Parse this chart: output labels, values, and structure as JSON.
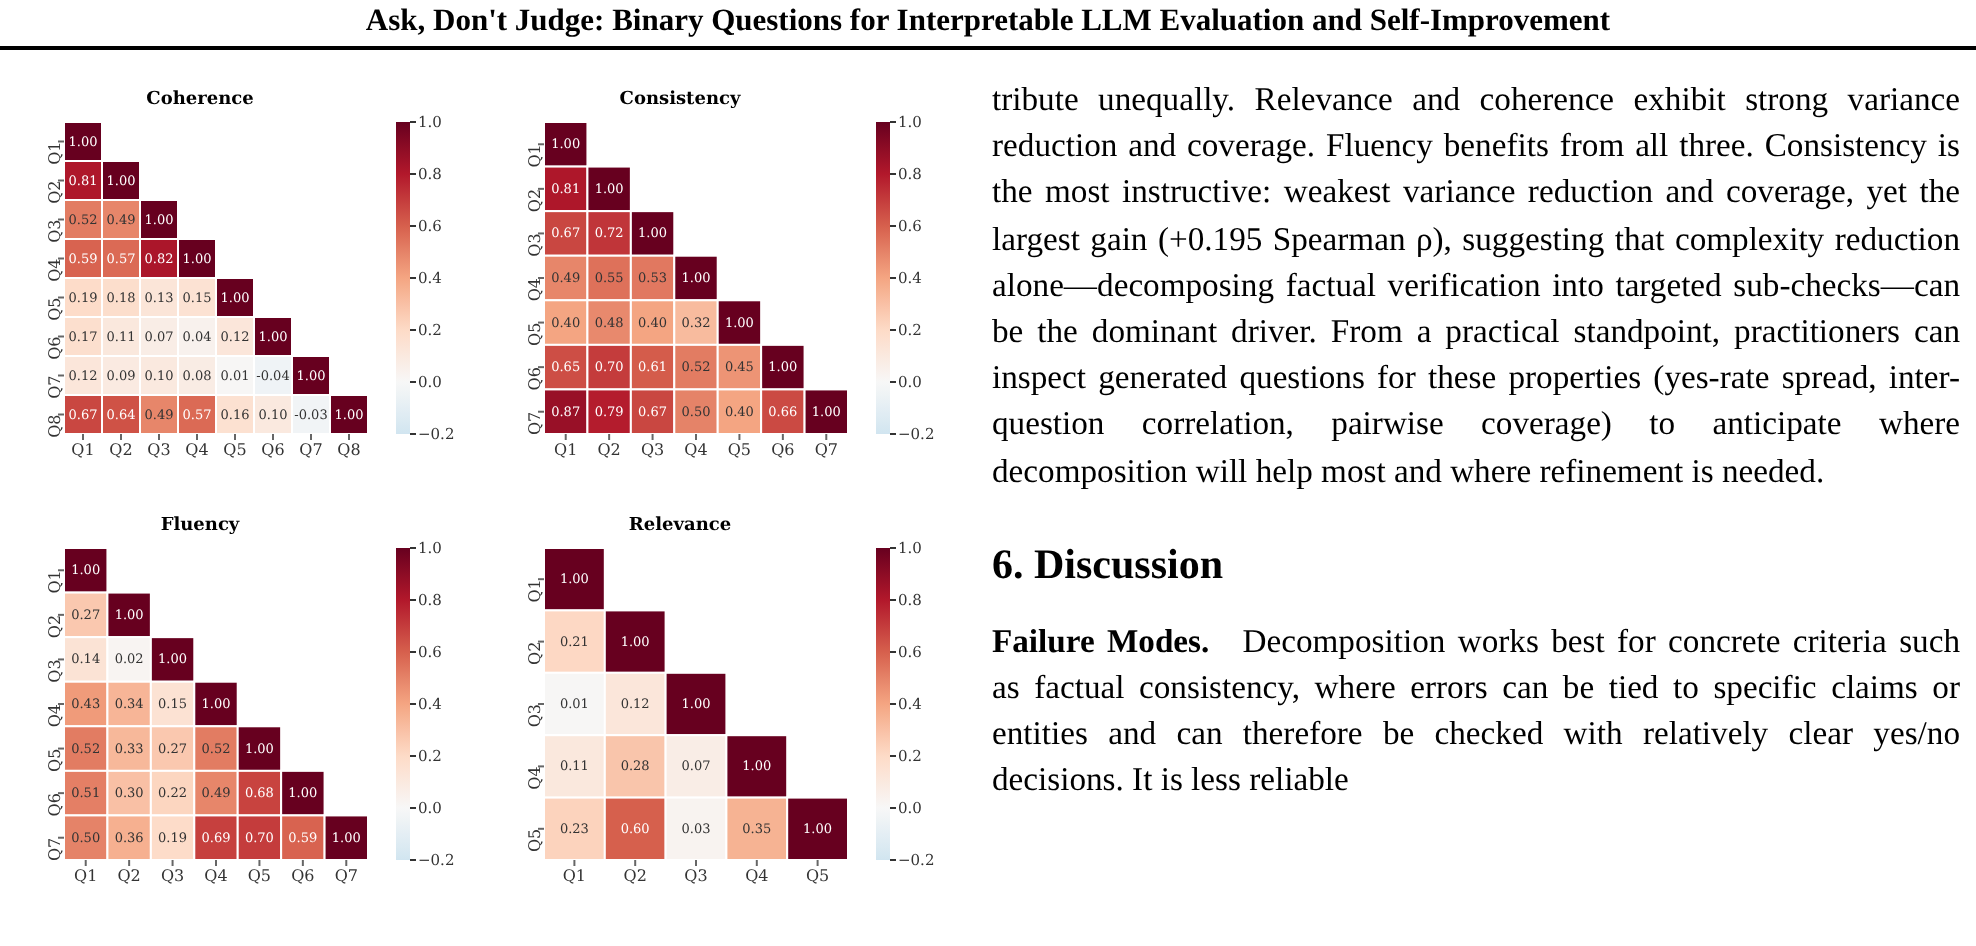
{
  "chart_data": [
    {
      "type": "heatmap",
      "title": "Coherence",
      "categories": [
        "Q1",
        "Q2",
        "Q3",
        "Q4",
        "Q5",
        "Q6",
        "Q7",
        "Q8"
      ],
      "y_categories": [
        "Q1",
        "Q2",
        "Q3",
        "Q4",
        "Q5",
        "Q6",
        "Q7",
        "Q8"
      ],
      "cells": [
        [
          1.0,
          null,
          null,
          null,
          null,
          null,
          null,
          null
        ],
        [
          0.81,
          1.0,
          null,
          null,
          null,
          null,
          null,
          null
        ],
        [
          0.52,
          0.49,
          1.0,
          null,
          null,
          null,
          null,
          null
        ],
        [
          0.59,
          0.57,
          0.82,
          1.0,
          null,
          null,
          null,
          null
        ],
        [
          0.19,
          0.18,
          0.13,
          0.15,
          1.0,
          null,
          null,
          null
        ],
        [
          0.17,
          0.11,
          0.07,
          0.04,
          0.12,
          1.0,
          null,
          null
        ],
        [
          0.12,
          0.09,
          0.1,
          0.08,
          0.01,
          -0.04,
          1.0,
          null
        ],
        [
          0.67,
          0.64,
          0.49,
          0.57,
          0.16,
          0.1,
          -0.03,
          1.0
        ]
      ],
      "cell_labels": [
        [
          "1.00",
          null,
          null,
          null,
          null,
          null,
          null,
          null
        ],
        [
          "0.81",
          "1.00",
          null,
          null,
          null,
          null,
          null,
          null
        ],
        [
          "0.52",
          "0.49",
          "1.00",
          null,
          null,
          null,
          null,
          null
        ],
        [
          "0.59",
          "0.57",
          "0.82",
          "1.00",
          null,
          null,
          null,
          null
        ],
        [
          "0.19",
          "0.18",
          "0.13",
          "0.15",
          "1.00",
          null,
          null,
          null
        ],
        [
          "0.17",
          "0.11",
          "0.07",
          "0.04",
          "0.12",
          "1.00",
          null,
          null
        ],
        [
          "0.12",
          "0.09",
          "0.10",
          "0.08",
          "0.01",
          "-0.04",
          "1.00",
          null
        ],
        [
          "0.67",
          "0.64",
          "0.49",
          "0.57",
          "0.16",
          "0.10",
          "-0.03",
          "1.00"
        ]
      ],
      "clim": [
        -0.2,
        1.0
      ],
      "cticks": [
        {
          "value": -0.2,
          "label": "−0.2"
        },
        {
          "value": 0,
          "label": "0.0"
        },
        {
          "value": 0.2,
          "label": "0.2"
        },
        {
          "value": 0.4,
          "label": "0.4"
        },
        {
          "value": 0.6,
          "label": "0.6"
        },
        {
          "value": 0.8,
          "label": "0.8"
        },
        {
          "value": 1.0,
          "label": "1.0"
        }
      ]
    },
    {
      "type": "heatmap",
      "title": "Consistency",
      "categories": [
        "Q1",
        "Q2",
        "Q3",
        "Q4",
        "Q5",
        "Q6",
        "Q7"
      ],
      "y_categories": [
        "Q1",
        "Q2",
        "Q3",
        "Q4",
        "Q5",
        "Q6",
        "Q7"
      ],
      "cells": [
        [
          1.0,
          null,
          null,
          null,
          null,
          null,
          null
        ],
        [
          0.81,
          1.0,
          null,
          null,
          null,
          null,
          null
        ],
        [
          0.67,
          0.72,
          1.0,
          null,
          null,
          null,
          null
        ],
        [
          0.49,
          0.55,
          0.53,
          1.0,
          null,
          null,
          null
        ],
        [
          0.4,
          0.48,
          0.4,
          0.32,
          1.0,
          null,
          null
        ],
        [
          0.65,
          0.7,
          0.61,
          0.52,
          0.45,
          1.0,
          null
        ],
        [
          0.87,
          0.79,
          0.67,
          0.5,
          0.4,
          0.66,
          1.0
        ]
      ],
      "cell_labels": [
        [
          "1.00",
          null,
          null,
          null,
          null,
          null,
          null
        ],
        [
          "0.81",
          "1.00",
          null,
          null,
          null,
          null,
          null
        ],
        [
          "0.67",
          "0.72",
          "1.00",
          null,
          null,
          null,
          null
        ],
        [
          "0.49",
          "0.55",
          "0.53",
          "1.00",
          null,
          null,
          null
        ],
        [
          "0.40",
          "0.48",
          "0.40",
          "0.32",
          "1.00",
          null,
          null
        ],
        [
          "0.65",
          "0.70",
          "0.61",
          "0.52",
          "0.45",
          "1.00",
          null
        ],
        [
          "0.87",
          "0.79",
          "0.67",
          "0.50",
          "0.40",
          "0.66",
          "1.00"
        ]
      ],
      "clim": [
        -0.2,
        1.0
      ],
      "cticks": [
        {
          "value": -0.2,
          "label": "−0.2"
        },
        {
          "value": 0,
          "label": "0.0"
        },
        {
          "value": 0.2,
          "label": "0.2"
        },
        {
          "value": 0.4,
          "label": "0.4"
        },
        {
          "value": 0.6,
          "label": "0.6"
        },
        {
          "value": 0.8,
          "label": "0.8"
        },
        {
          "value": 1.0,
          "label": "1.0"
        }
      ]
    },
    {
      "type": "heatmap",
      "title": "Fluency",
      "categories": [
        "Q1",
        "Q2",
        "Q3",
        "Q4",
        "Q5",
        "Q6",
        "Q7"
      ],
      "y_categories": [
        "Q1",
        "Q2",
        "Q3",
        "Q4",
        "Q5",
        "Q6",
        "Q7"
      ],
      "cells": [
        [
          1.0,
          null,
          null,
          null,
          null,
          null,
          null
        ],
        [
          0.27,
          1.0,
          null,
          null,
          null,
          null,
          null
        ],
        [
          0.14,
          0.02,
          1.0,
          null,
          null,
          null,
          null
        ],
        [
          0.43,
          0.34,
          0.15,
          1.0,
          null,
          null,
          null
        ],
        [
          0.52,
          0.33,
          0.27,
          0.52,
          1.0,
          null,
          null
        ],
        [
          0.51,
          0.3,
          0.22,
          0.49,
          0.68,
          1.0,
          null
        ],
        [
          0.5,
          0.36,
          0.19,
          0.69,
          0.7,
          0.59,
          1.0
        ]
      ],
      "cell_labels": [
        [
          "1.00",
          null,
          null,
          null,
          null,
          null,
          null
        ],
        [
          "0.27",
          "1.00",
          null,
          null,
          null,
          null,
          null
        ],
        [
          "0.14",
          "0.02",
          "1.00",
          null,
          null,
          null,
          null
        ],
        [
          "0.43",
          "0.34",
          "0.15",
          "1.00",
          null,
          null,
          null
        ],
        [
          "0.52",
          "0.33",
          "0.27",
          "0.52",
          "1.00",
          null,
          null
        ],
        [
          "0.51",
          "0.30",
          "0.22",
          "0.49",
          "0.68",
          "1.00",
          null
        ],
        [
          "0.50",
          "0.36",
          "0.19",
          "0.69",
          "0.70",
          "0.59",
          "1.00"
        ]
      ],
      "clim": [
        -0.2,
        1.0
      ],
      "cticks": [
        {
          "value": -0.2,
          "label": "−0.2"
        },
        {
          "value": 0,
          "label": "0.0"
        },
        {
          "value": 0.2,
          "label": "0.2"
        },
        {
          "value": 0.4,
          "label": "0.4"
        },
        {
          "value": 0.6,
          "label": "0.6"
        },
        {
          "value": 0.8,
          "label": "0.8"
        },
        {
          "value": 1.0,
          "label": "1.0"
        }
      ]
    },
    {
      "type": "heatmap",
      "title": "Relevance",
      "categories": [
        "Q1",
        "Q2",
        "Q3",
        "Q4",
        "Q5"
      ],
      "y_categories": [
        "Q1",
        "Q2",
        "Q3",
        "Q4",
        "Q5"
      ],
      "cells": [
        [
          1.0,
          null,
          null,
          null,
          null
        ],
        [
          0.21,
          1.0,
          null,
          null,
          null
        ],
        [
          0.01,
          0.12,
          1.0,
          null,
          null
        ],
        [
          0.11,
          0.28,
          0.07,
          1.0,
          null
        ],
        [
          0.23,
          0.6,
          0.03,
          0.35,
          1.0
        ]
      ],
      "cell_labels": [
        [
          "1.00",
          null,
          null,
          null,
          null
        ],
        [
          "0.21",
          "1.00",
          null,
          null,
          null
        ],
        [
          "0.01",
          "0.12",
          "1.00",
          null,
          null
        ],
        [
          "0.11",
          "0.28",
          "0.07",
          "1.00",
          null
        ],
        [
          "0.23",
          "0.60",
          "0.03",
          "0.35",
          "1.00"
        ]
      ],
      "clim": [
        -0.2,
        1.0
      ],
      "cticks": [
        {
          "value": -0.2,
          "label": "−0.2"
        },
        {
          "value": 0,
          "label": "0.0"
        },
        {
          "value": 0.2,
          "label": "0.2"
        },
        {
          "value": 0.4,
          "label": "0.4"
        },
        {
          "value": 0.6,
          "label": "0.6"
        },
        {
          "value": 0.8,
          "label": "0.8"
        },
        {
          "value": 1.0,
          "label": "1.0"
        }
      ]
    },
    {
      "type": "other",
      "title": "Ask, Don't Judge: Binary Questions for Interpretable LLM Evaluation and Self-Improvement",
      "annotations": [
        "tribute unequally. Relevance and coherence exhibit strong variance reduction and coverage. Fluency benefits from all three. Consistency is the most instructive: weakest variance reduction and coverage, yet the largest gain (+0.195 Spearman ρ), suggesting that complexity reduction alone—decomposing factual verification into targeted sub-checks—can be the dominant driver. From a practical standpoint, practitioners can inspect generated questions for these properties (yes-rate spread, inter-question correlation, pairwise coverage) to anticipate where decomposition will help most and where refinement is needed.",
        "6. Discussion",
        "Failure Modes. Decomposition works best for concrete criteria such as factual consistency, where errors can be tied to specific claims or entities and can therefore be checked with relatively clear yes/no decisions. It is less reliable"
      ]
    }
  ]
}
